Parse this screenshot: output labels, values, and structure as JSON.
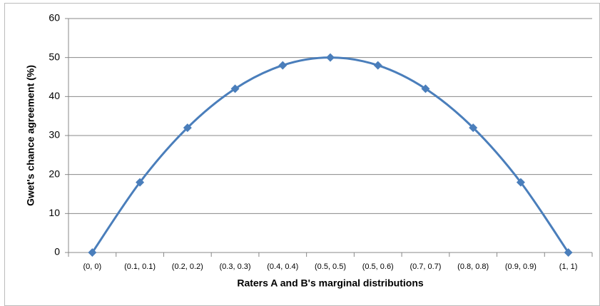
{
  "chart_data": {
    "type": "line",
    "x_label": "Raters A and B's marginal distributions",
    "y_label": "Gwet's chance agreement (%)",
    "categories": [
      "(0, 0)",
      "(0.1, 0.1)",
      "(0.2, 0.2)",
      "(0.3, 0.3)",
      "(0.4, 0.4)",
      "(0.5, 0.5)",
      "(0.5, 0.6)",
      "(0.7, 0.7)",
      "(0.8, 0.8)",
      "(0.9, 0.9)",
      "(1, 1)"
    ],
    "values": [
      0,
      18,
      32,
      42,
      48,
      50,
      48,
      42,
      32,
      18,
      0
    ],
    "color": "#4a7ebb",
    "ylim": [
      0,
      60
    ],
    "yticks": [
      0,
      10,
      20,
      30,
      40,
      50,
      60
    ],
    "grid": true
  }
}
